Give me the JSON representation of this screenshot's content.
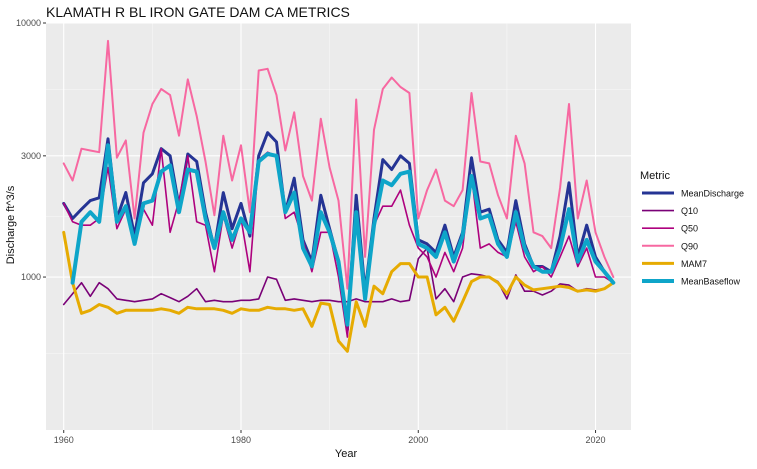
{
  "chart_data": {
    "type": "line",
    "title": "KLAMATH R BL IRON GATE DAM CA  METRICS",
    "xlabel": "Year",
    "ylabel": "Discharge ft^3/s",
    "y_scale": "log10",
    "xlim": [
      1958,
      2024
    ],
    "ylim": [
      250,
      10000
    ],
    "x_ticks": [
      1960,
      1980,
      2000,
      2020
    ],
    "y_ticks": [
      1000,
      3000,
      10000
    ],
    "grid": true,
    "panel_background": "#ebebeb",
    "legend": {
      "title": "Metric",
      "placement": "right"
    },
    "x": [
      1960,
      1961,
      1962,
      1963,
      1964,
      1965,
      1966,
      1967,
      1968,
      1969,
      1970,
      1971,
      1972,
      1973,
      1974,
      1975,
      1976,
      1977,
      1978,
      1979,
      1980,
      1981,
      1982,
      1983,
      1984,
      1985,
      1986,
      1987,
      1988,
      1989,
      1990,
      1991,
      1992,
      1993,
      1994,
      1995,
      1996,
      1997,
      1998,
      1999,
      2000,
      2001,
      2002,
      2003,
      2004,
      2005,
      2006,
      2007,
      2008,
      2009,
      2010,
      2011,
      2012,
      2013,
      2014,
      2015,
      2016,
      2017,
      2018,
      2019,
      2020,
      2021,
      2022
    ],
    "series": [
      {
        "name": "MeanDischarge",
        "color": "#253494",
        "width": 3,
        "values": [
          1950,
          1700,
          1850,
          2000,
          2050,
          3500,
          1700,
          2150,
          1450,
          2350,
          2550,
          3200,
          3000,
          1900,
          3050,
          2850,
          1800,
          1300,
          2150,
          1550,
          1950,
          1450,
          3000,
          3700,
          3400,
          1800,
          2450,
          1400,
          1150,
          2100,
          1550,
          1150,
          620,
          2100,
          880,
          1700,
          2900,
          2650,
          3000,
          2800,
          1400,
          1350,
          1250,
          1600,
          1200,
          1500,
          2950,
          1800,
          1850,
          1400,
          1250,
          2000,
          1350,
          1100,
          1100,
          1050,
          1450,
          2350,
          1200,
          1600,
          1200,
          1050,
          950
        ]
      },
      {
        "name": "Q10",
        "color": "#7a0177",
        "width": 1.6,
        "values": [
          780,
          860,
          950,
          840,
          950,
          900,
          820,
          810,
          800,
          810,
          820,
          860,
          830,
          800,
          840,
          900,
          800,
          810,
          800,
          800,
          810,
          810,
          820,
          1000,
          980,
          810,
          820,
          810,
          800,
          810,
          810,
          800,
          800,
          820,
          800,
          800,
          800,
          820,
          800,
          810,
          1180,
          1300,
          820,
          900,
          800,
          1000,
          1030,
          1020,
          1000,
          960,
          820,
          1020,
          880,
          880,
          850,
          880,
          940,
          930,
          880,
          900,
          890,
          900,
          950
        ]
      },
      {
        "name": "Q50",
        "color": "#ae017e",
        "width": 1.6,
        "values": [
          1950,
          1650,
          1600,
          1600,
          1700,
          2700,
          1550,
          1850,
          1350,
          1850,
          1600,
          3200,
          1500,
          2000,
          3000,
          1650,
          1600,
          1050,
          1750,
          1300,
          1700,
          1050,
          2900,
          3100,
          3000,
          1700,
          1800,
          1400,
          1050,
          1500,
          1500,
          1000,
          580,
          1800,
          820,
          1600,
          1900,
          1900,
          2200,
          1600,
          1300,
          1200,
          1000,
          1250,
          1050,
          1300,
          2500,
          1300,
          1350,
          1250,
          1200,
          1650,
          1200,
          1050,
          1100,
          1000,
          1200,
          1450,
          1100,
          1300,
          1000,
          1000,
          950
        ]
      },
      {
        "name": "Q90",
        "color": "#f768a1",
        "width": 2,
        "values": [
          2800,
          2400,
          3200,
          3150,
          3100,
          8500,
          2950,
          3450,
          1700,
          3700,
          4800,
          5500,
          5200,
          3600,
          6000,
          4300,
          2850,
          1750,
          3600,
          2400,
          3300,
          1800,
          6500,
          6600,
          5200,
          3150,
          4450,
          2500,
          2000,
          4200,
          2700,
          2000,
          900,
          5000,
          1200,
          3800,
          5500,
          6100,
          5600,
          5300,
          1700,
          2200,
          2650,
          2000,
          1900,
          2200,
          5300,
          2850,
          2800,
          2100,
          1700,
          3600,
          2800,
          1500,
          1450,
          1300,
          2250,
          4800,
          1700,
          2400,
          1500,
          1200,
          1000
        ]
      },
      {
        "name": "MAM7",
        "color": "#e6ab02",
        "width": 3,
        "values": [
          1500,
          950,
          720,
          740,
          780,
          760,
          720,
          740,
          740,
          740,
          740,
          750,
          740,
          720,
          760,
          750,
          750,
          750,
          740,
          720,
          750,
          740,
          740,
          760,
          750,
          750,
          740,
          750,
          640,
          790,
          780,
          560,
          510,
          800,
          640,
          920,
          860,
          1050,
          1130,
          1130,
          1000,
          1000,
          710,
          760,
          670,
          800,
          960,
          1000,
          1000,
          950,
          860,
          1000,
          930,
          890,
          900,
          910,
          920,
          910,
          880,
          890,
          880,
          900,
          950
        ]
      },
      {
        "name": "MeanBaseflow",
        "color": "#0ea5c9",
        "width": 4,
        "values": [
          null,
          950,
          1650,
          1800,
          1650,
          3300,
          1650,
          1900,
          1350,
          1950,
          2000,
          2600,
          2750,
          1800,
          2650,
          2600,
          1700,
          1300,
          1800,
          1400,
          1700,
          1500,
          2850,
          3050,
          3000,
          1800,
          2150,
          1300,
          1100,
          1800,
          1500,
          1150,
          650,
          1800,
          820,
          1600,
          2400,
          2300,
          2550,
          2600,
          1350,
          1300,
          1200,
          1500,
          1150,
          1450,
          2500,
          1700,
          1750,
          1350,
          1200,
          1800,
          1300,
          1100,
          1050,
          1050,
          1300,
          1850,
          1150,
          1400,
          1150,
          1050,
          950
        ]
      }
    ]
  }
}
